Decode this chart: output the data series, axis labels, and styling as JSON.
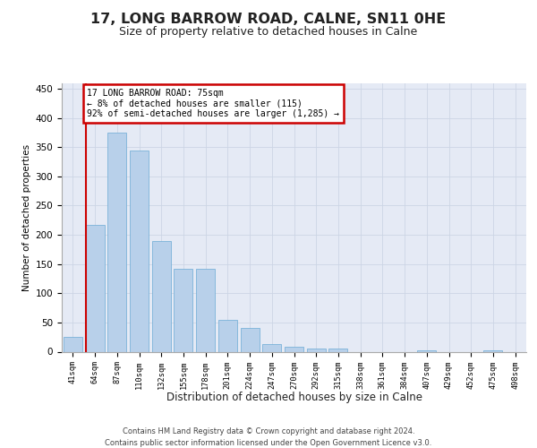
{
  "title1": "17, LONG BARROW ROAD, CALNE, SN11 0HE",
  "title2": "Size of property relative to detached houses in Calne",
  "xlabel": "Distribution of detached houses by size in Calne",
  "ylabel": "Number of detached properties",
  "categories": [
    "41sqm",
    "64sqm",
    "87sqm",
    "110sqm",
    "132sqm",
    "155sqm",
    "178sqm",
    "201sqm",
    "224sqm",
    "247sqm",
    "270sqm",
    "292sqm",
    "315sqm",
    "338sqm",
    "361sqm",
    "384sqm",
    "407sqm",
    "429sqm",
    "452sqm",
    "475sqm",
    "498sqm"
  ],
  "values": [
    25,
    217,
    375,
    345,
    190,
    142,
    142,
    55,
    40,
    13,
    8,
    5,
    5,
    0,
    0,
    0,
    2,
    0,
    0,
    2,
    0
  ],
  "bar_color": "#b8d0ea",
  "bar_edge_color": "#6aaad4",
  "annotation_text": "17 LONG BARROW ROAD: 75sqm\n← 8% of detached houses are smaller (115)\n92% of semi-detached houses are larger (1,285) →",
  "annotation_box_facecolor": "#ffffff",
  "annotation_box_edgecolor": "#cc0000",
  "grid_color": "#ccd5e5",
  "bg_color": "#e5eaf5",
  "footer_text": "Contains HM Land Registry data © Crown copyright and database right 2024.\nContains public sector information licensed under the Open Government Licence v3.0.",
  "ylim": [
    0,
    460
  ],
  "yticks": [
    0,
    50,
    100,
    150,
    200,
    250,
    300,
    350,
    400,
    450
  ],
  "red_line_color": "#cc0000",
  "red_line_x": 0.575
}
